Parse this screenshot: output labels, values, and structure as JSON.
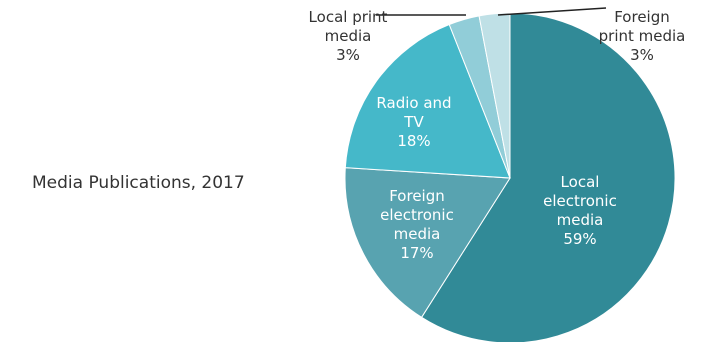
{
  "title": "Media Publications, 2017",
  "chart_data": {
    "type": "pie",
    "title": "Media Publications, 2017",
    "start_angle_deg": 0,
    "direction": "clockwise",
    "slices": [
      {
        "label_lines": [
          "Local",
          "electronic",
          "media"
        ],
        "value_text": "59%",
        "value": 59,
        "color": "#318A97",
        "label_color": "#ffffff",
        "label_position": "inside"
      },
      {
        "label_lines": [
          "Foreign",
          "electronic",
          "media"
        ],
        "value_text": "17%",
        "value": 17,
        "color": "#58A3B0",
        "label_color": "#ffffff",
        "label_position": "inside"
      },
      {
        "label_lines": [
          "Radio and",
          "TV"
        ],
        "value_text": "18%",
        "value": 18,
        "color": "#45B8C9",
        "label_color": "#ffffff",
        "label_position": "inside"
      },
      {
        "label_lines": [
          "Local print",
          "media"
        ],
        "value_text": "3%",
        "value": 3,
        "color": "#91CDD8",
        "label_color": "#333333",
        "label_position": "outside-left"
      },
      {
        "label_lines": [
          "Foreign",
          "print media"
        ],
        "value_text": "3%",
        "value": 3,
        "color": "#BFE0E6",
        "label_color": "#333333",
        "label_position": "outside-right"
      }
    ]
  }
}
